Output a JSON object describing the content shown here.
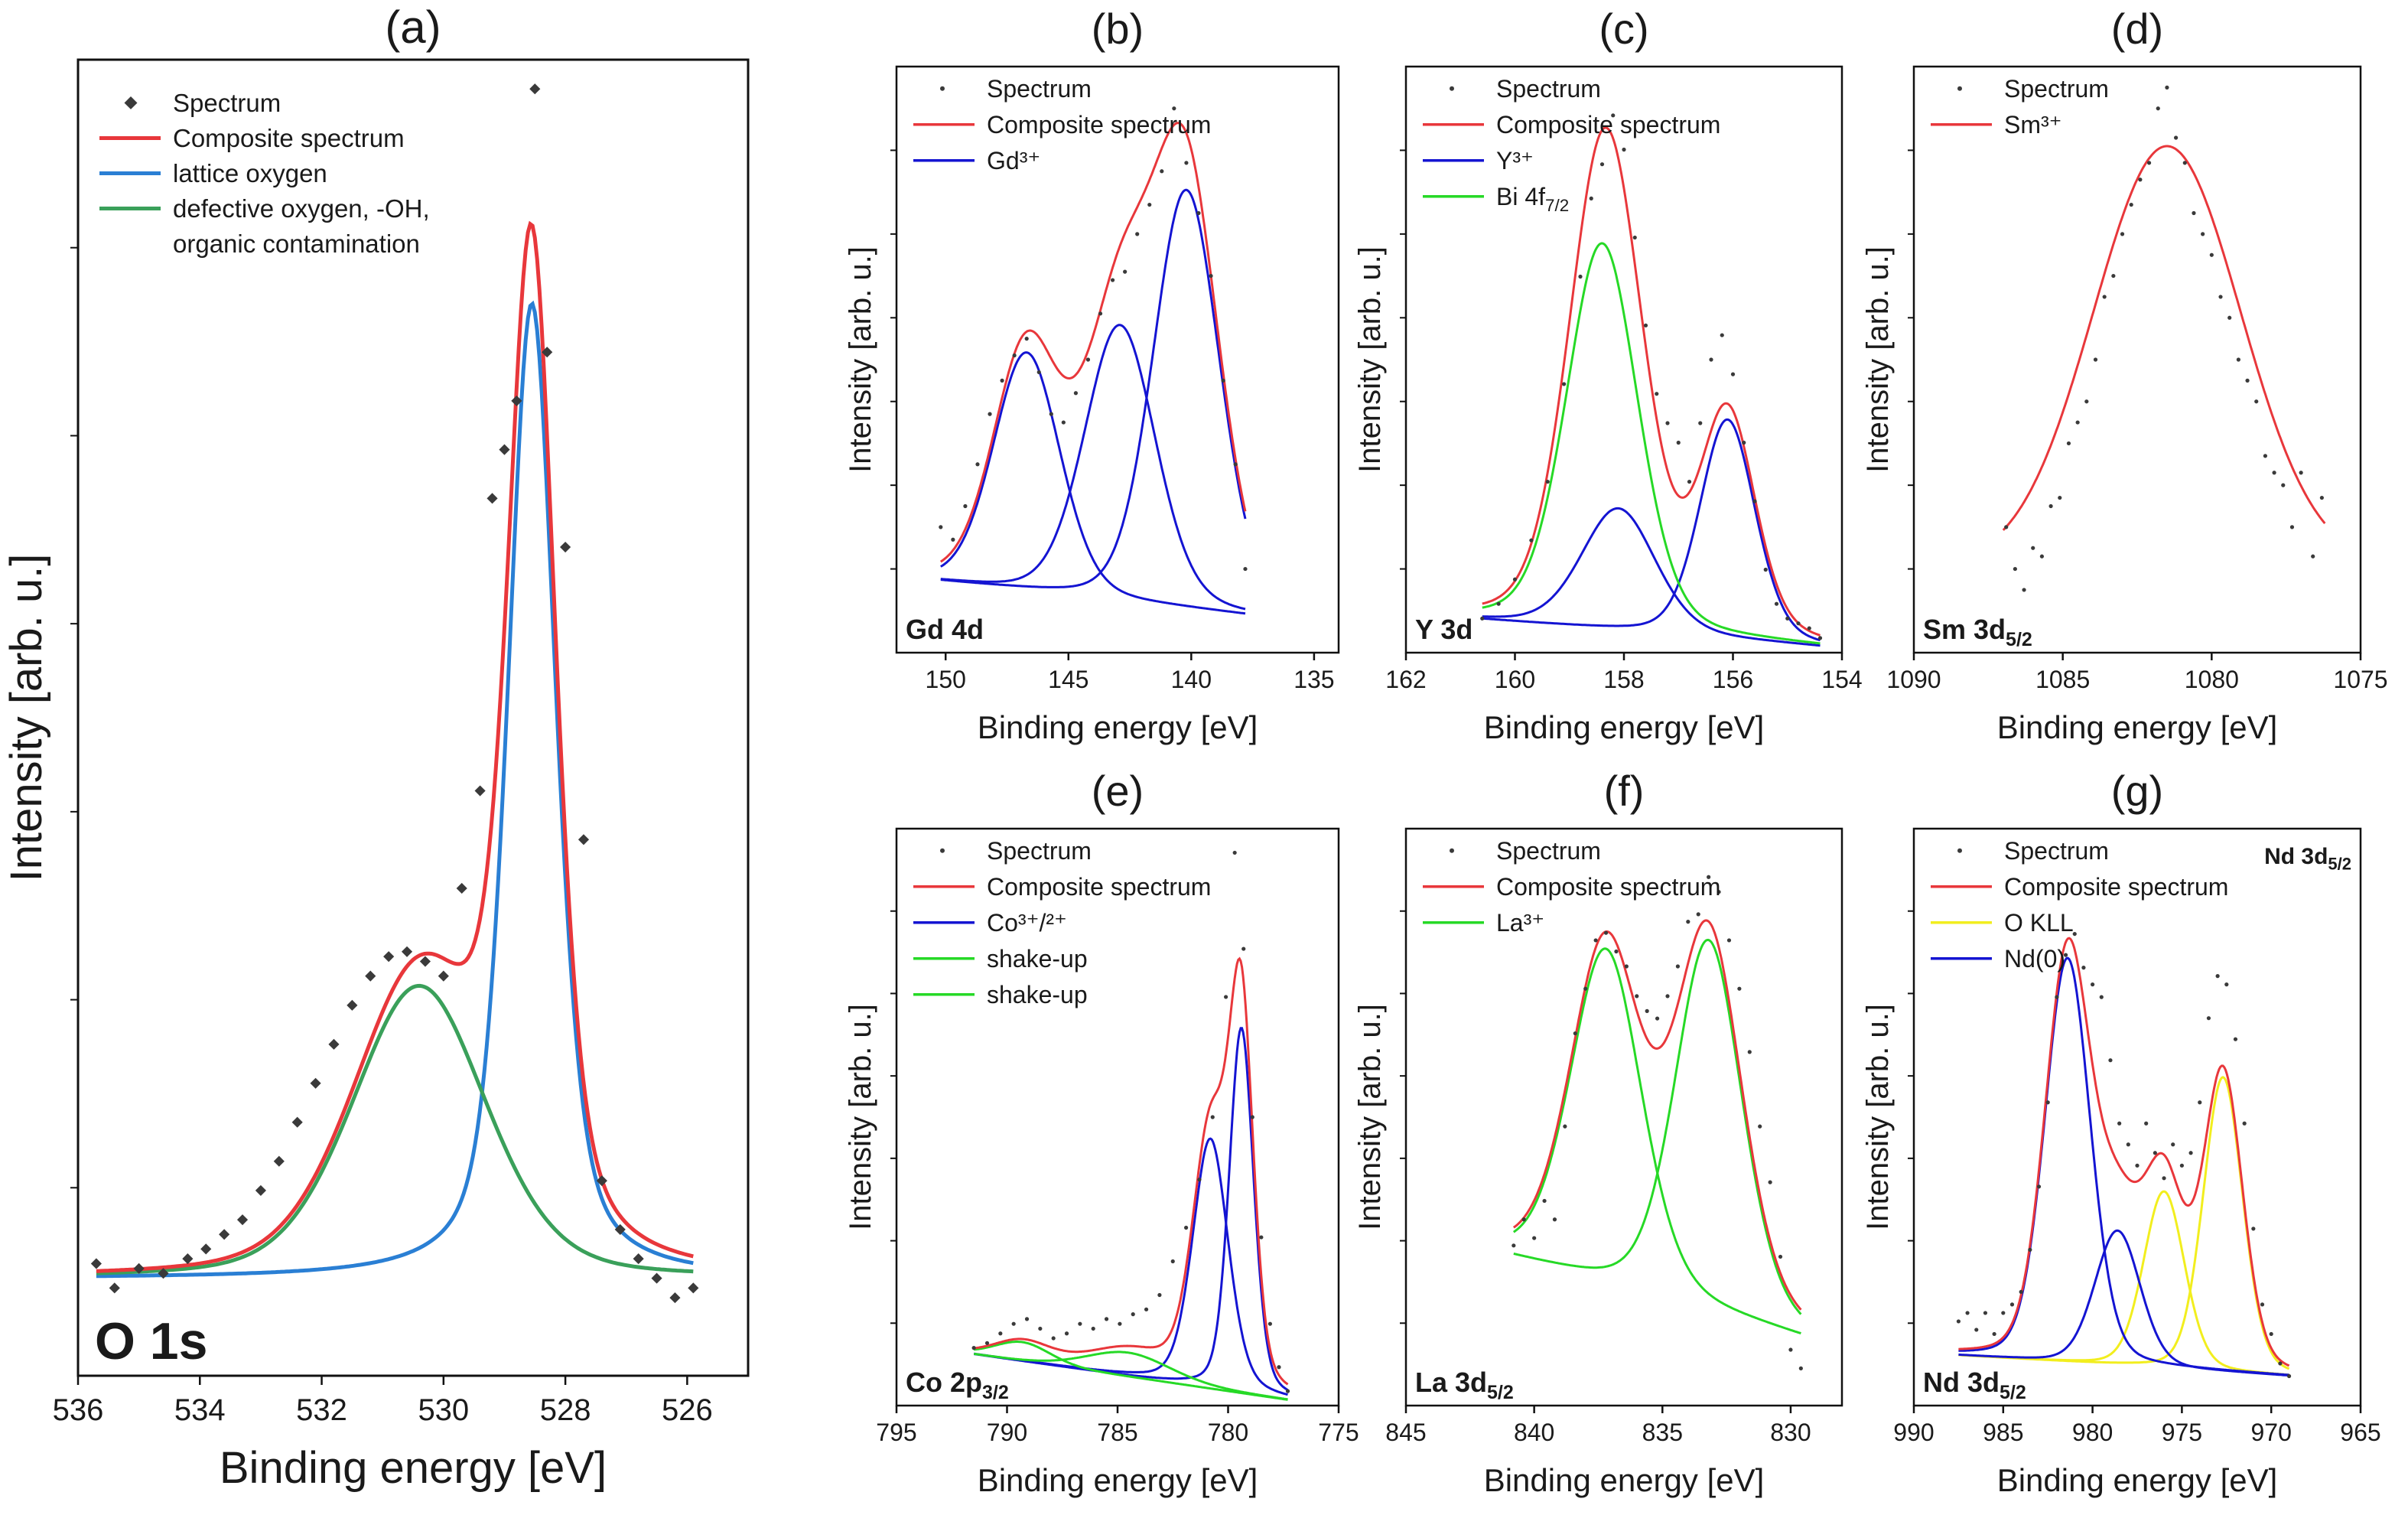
{
  "figure": {
    "ylabel": "Intensity [arb. u.]",
    "xlabel": "Binding energy [eV]"
  },
  "colors": {
    "spectrum": "#3a3a3a",
    "composite": "#e8373b",
    "blue_a": "#2a7fd4",
    "green_a": "#3aa05a",
    "blue": "#1414d2",
    "green": "#26d926",
    "yellow": "#f2ee1e"
  },
  "chart_data": [
    {
      "id": "a",
      "panel_label": "(a)",
      "core_level": "O 1s",
      "type": "line",
      "xlabel": "Binding energy [eV]",
      "ylabel": "Intensity [arb. u.]",
      "xlim": [
        536,
        525
      ],
      "ylim": [
        -0.1,
        1.25
      ],
      "xticks": [
        536,
        534,
        532,
        530,
        528,
        526
      ],
      "legend_position": "top-left",
      "baseline": 0.0,
      "series": [
        {
          "name": "Spectrum",
          "kind": "points",
          "color_key": "spectrum",
          "x": [
            535.7,
            535.4,
            535.0,
            534.6,
            534.2,
            533.9,
            533.6,
            533.3,
            533.0,
            532.7,
            532.4,
            532.1,
            531.8,
            531.5,
            531.2,
            530.9,
            530.6,
            530.3,
            530.0,
            529.7,
            529.4,
            529.2,
            529.0,
            528.8,
            528.5,
            528.3,
            528.0,
            527.7,
            527.4,
            527.1,
            526.8,
            526.5,
            526.2,
            525.9
          ],
          "y": [
            0.015,
            -0.01,
            0.01,
            0.005,
            0.02,
            0.03,
            0.045,
            0.06,
            0.09,
            0.12,
            0.16,
            0.2,
            0.24,
            0.28,
            0.31,
            0.33,
            0.335,
            0.325,
            0.31,
            0.4,
            0.5,
            0.8,
            0.85,
            0.9,
            1.22,
            0.95,
            0.75,
            0.45,
            0.1,
            0.05,
            0.02,
            0.0,
            -0.02,
            -0.01
          ]
        },
        {
          "name": "Composite spectrum",
          "kind": "line",
          "color_key": "composite",
          "components": [
            0,
            1
          ]
        },
        {
          "name": "lattice oxygen",
          "kind": "line",
          "color_key": "blue_a",
          "components": [
            1
          ]
        },
        {
          "name": "defective oxygen, -OH,\n organic contamination",
          "kind": "line",
          "color_key": "green_a",
          "components": [
            0
          ]
        }
      ],
      "components": [
        {
          "center": 530.4,
          "fwhm": 2.6,
          "amp": 0.3,
          "frac": 0.3
        },
        {
          "center": 528.55,
          "fwhm": 0.95,
          "amp": 1.0,
          "frac": 0.5
        }
      ]
    },
    {
      "id": "b",
      "panel_label": "(b)",
      "core_level": "Gd 4d",
      "type": "line",
      "xlabel": "Binding energy [eV]",
      "ylabel": "Intensity [arb. u.]",
      "xlim": [
        152,
        134
      ],
      "ylim": [
        -0.15,
        1.25
      ],
      "xticks": [
        150,
        145,
        140,
        135
      ],
      "baseline_line": [
        [
          150.3,
          0.02
        ],
        [
          137.8,
          -0.06
        ]
      ],
      "legend_position": "top-left",
      "series": [
        {
          "name": "Spectrum",
          "kind": "points",
          "color_key": "spectrum",
          "x": [
            150.2,
            149.7,
            149.2,
            148.7,
            148.2,
            147.7,
            147.2,
            146.7,
            146.2,
            145.7,
            145.2,
            144.7,
            144.2,
            143.7,
            143.2,
            142.7,
            142.2,
            141.7,
            141.2,
            140.7,
            140.2,
            139.7,
            139.2,
            138.7,
            138.2,
            137.8
          ],
          "y": [
            0.15,
            0.12,
            0.2,
            0.3,
            0.42,
            0.5,
            0.56,
            0.6,
            0.52,
            0.42,
            0.4,
            0.47,
            0.55,
            0.66,
            0.74,
            0.76,
            0.85,
            0.92,
            1.0,
            1.15,
            1.02,
            0.9,
            0.75,
            0.5,
            0.3,
            0.05
          ]
        },
        {
          "name": "Composite spectrum",
          "kind": "line",
          "color_key": "composite",
          "components": [
            0,
            1,
            2
          ]
        },
        {
          "name": "Gd³⁺",
          "kind": "line",
          "color_key": "blue",
          "components": [
            0,
            1,
            2
          ],
          "individual": true
        }
      ],
      "components": [
        {
          "center": 146.7,
          "fwhm": 3.2,
          "amp": 0.57,
          "frac": 0.2
        },
        {
          "center": 142.9,
          "fwhm": 3.4,
          "amp": 0.66,
          "frac": 0.2
        },
        {
          "center": 140.2,
          "fwhm": 3.2,
          "amp": 1.0,
          "frac": 0.2
        }
      ]
    },
    {
      "id": "c",
      "panel_label": "(c)",
      "core_level": "Y 3d",
      "type": "line",
      "xlabel": "Binding energy [eV]",
      "ylabel": "Intensity [arb. u.]",
      "xlim": [
        162,
        154
      ],
      "ylim": [
        -0.05,
        1.15
      ],
      "xticks": [
        162,
        160,
        158,
        156,
        154
      ],
      "baseline_line": [
        [
          160.8,
          0.02
        ],
        [
          154.2,
          -0.04
        ]
      ],
      "legend_position": "top-left",
      "series": [
        {
          "name": "Spectrum",
          "kind": "points",
          "color_key": "spectrum",
          "x": [
            160.6,
            160.3,
            160.0,
            159.7,
            159.4,
            159.1,
            158.8,
            158.6,
            158.4,
            158.2,
            158.0,
            157.8,
            157.6,
            157.4,
            157.2,
            157.0,
            156.8,
            156.6,
            156.4,
            156.2,
            156.0,
            155.8,
            155.6,
            155.4,
            155.2,
            155.0,
            154.8,
            154.6,
            154.4
          ],
          "y": [
            0.02,
            0.05,
            0.1,
            0.18,
            0.3,
            0.5,
            0.72,
            0.88,
            0.95,
            1.05,
            0.98,
            0.8,
            0.62,
            0.48,
            0.42,
            0.38,
            0.3,
            0.42,
            0.55,
            0.6,
            0.52,
            0.38,
            0.26,
            0.12,
            0.05,
            0.02,
            0.01,
            0.0,
            -0.02
          ]
        },
        {
          "name": "Composite spectrum",
          "kind": "line",
          "color_key": "composite",
          "components": [
            0,
            1,
            2
          ]
        },
        {
          "name": "Y³⁺",
          "kind": "line",
          "color_key": "blue",
          "components": [
            1,
            2
          ],
          "individual": true
        },
        {
          "name": "Bi 4f7/2",
          "kind": "line",
          "color_key": "green",
          "components": [
            0
          ],
          "individual": true
        }
      ],
      "components": [
        {
          "center": 158.4,
          "fwhm": 1.55,
          "amp": 0.79,
          "frac": 0.25
        },
        {
          "center": 158.1,
          "fwhm": 1.6,
          "amp": 0.25,
          "frac": 0.25
        },
        {
          "center": 156.1,
          "fwhm": 1.2,
          "amp": 0.45,
          "frac": 0.25
        }
      ]
    },
    {
      "id": "d",
      "panel_label": "(d)",
      "core_level": "Sm 3d5/2",
      "type": "line",
      "xlabel": "Binding energy [eV]",
      "ylabel": "Intensity [arb. u.]",
      "xlim": [
        1090,
        1075
      ],
      "ylim": [
        -0.25,
        1.15
      ],
      "xticks": [
        1090,
        1085,
        1080,
        1075
      ],
      "legend_position": "top-left",
      "series": [
        {
          "name": "Spectrum",
          "kind": "points",
          "color_key": "spectrum",
          "x": [
            1086.9,
            1086.6,
            1086.3,
            1086.0,
            1085.7,
            1085.4,
            1085.1,
            1084.8,
            1084.5,
            1084.2,
            1083.9,
            1083.6,
            1083.3,
            1083.0,
            1082.7,
            1082.4,
            1082.1,
            1081.8,
            1081.5,
            1081.2,
            1080.9,
            1080.6,
            1080.3,
            1080.0,
            1079.7,
            1079.4,
            1079.1,
            1078.8,
            1078.5,
            1078.2,
            1077.9,
            1077.6,
            1077.3,
            1077.0,
            1076.6,
            1076.3
          ],
          "y": [
            0.05,
            -0.05,
            -0.1,
            0.0,
            -0.02,
            0.1,
            0.12,
            0.25,
            0.3,
            0.35,
            0.45,
            0.6,
            0.65,
            0.75,
            0.82,
            0.88,
            0.92,
            1.05,
            1.1,
            0.98,
            0.92,
            0.8,
            0.75,
            0.7,
            0.6,
            0.55,
            0.45,
            0.4,
            0.35,
            0.22,
            0.18,
            0.15,
            0.05,
            0.18,
            -0.02,
            0.12
          ]
        },
        {
          "name": "Sm³⁺",
          "kind": "line",
          "color_key": "composite",
          "components": [
            0
          ]
        }
      ],
      "components": [
        {
          "center": 1081.5,
          "fwhm": 5.8,
          "amp": 1.0,
          "frac": 0.0,
          "offset": -0.04
        }
      ],
      "curve_range": [
        1087.0,
        1076.2
      ]
    },
    {
      "id": "e",
      "panel_label": "(e)",
      "core_level": "Co 2p3/2",
      "type": "line",
      "xlabel": "Binding energy [eV]",
      "ylabel": "Intensity [arb. u.]",
      "xlim": [
        795,
        775
      ],
      "ylim": [
        -0.05,
        1.15
      ],
      "xticks": [
        795,
        790,
        785,
        780,
        775
      ],
      "baseline_line": [
        [
          792,
          0.06
        ],
        [
          777,
          -0.04
        ]
      ],
      "legend_position": "top-left",
      "series": [
        {
          "name": "Spectrum",
          "kind": "points",
          "color_key": "spectrum",
          "x": [
            791.5,
            790.9,
            790.3,
            789.7,
            789.1,
            788.5,
            787.9,
            787.3,
            786.7,
            786.1,
            785.5,
            784.9,
            784.3,
            783.7,
            783.1,
            782.5,
            781.9,
            781.3,
            780.7,
            780.1,
            779.7,
            779.3,
            778.9,
            778.5,
            778.1,
            777.7,
            777.3
          ],
          "y": [
            0.07,
            0.08,
            0.1,
            0.12,
            0.13,
            0.11,
            0.09,
            0.1,
            0.12,
            0.11,
            0.13,
            0.12,
            0.14,
            0.15,
            0.18,
            0.25,
            0.32,
            0.42,
            0.55,
            0.8,
            1.1,
            0.9,
            0.55,
            0.3,
            0.12,
            0.03,
            -0.02
          ]
        },
        {
          "name": "Composite spectrum",
          "kind": "line",
          "color_key": "composite",
          "components": [
            0,
            1,
            2,
            3
          ]
        },
        {
          "name": "Co³⁺/²⁺",
          "kind": "line",
          "color_key": "blue",
          "components": [
            2,
            3
          ],
          "individual": true
        },
        {
          "name": "shake-up",
          "kind": "line",
          "color_key": "green",
          "components": [
            0
          ],
          "individual": true
        },
        {
          "name": "shake-up",
          "kind": "line",
          "color_key": "green",
          "components": [
            1
          ],
          "individual": true
        }
      ],
      "components": [
        {
          "center": 789.3,
          "fwhm": 3.0,
          "amp": 0.04,
          "frac": 0.2
        },
        {
          "center": 784.5,
          "fwhm": 4.5,
          "amp": 0.05,
          "frac": 0.2
        },
        {
          "center": 780.8,
          "fwhm": 1.9,
          "amp": 0.52,
          "frac": 0.3
        },
        {
          "center": 779.4,
          "fwhm": 1.3,
          "amp": 0.76,
          "frac": 0.3
        }
      ]
    },
    {
      "id": "f",
      "panel_label": "(f)",
      "core_level": "La 3d5/2",
      "type": "line",
      "xlabel": "Binding energy [eV]",
      "ylabel": "Intensity [arb. u.]",
      "xlim": [
        845,
        828
      ],
      "ylim": [
        -0.4,
        1.15
      ],
      "xticks": [
        845,
        840,
        835,
        830
      ],
      "baseline_line": [
        [
          841,
          0.0
        ],
        [
          829.5,
          -0.22
        ]
      ],
      "legend_position": "top-left",
      "series": [
        {
          "name": "Spectrum",
          "kind": "points",
          "color_key": "spectrum",
          "x": [
            840.8,
            840.4,
            840.0,
            839.6,
            839.2,
            838.8,
            838.4,
            838.0,
            837.6,
            837.2,
            836.8,
            836.4,
            836.0,
            835.6,
            835.2,
            834.8,
            834.4,
            834.0,
            833.6,
            833.2,
            832.8,
            832.4,
            832.0,
            831.6,
            831.2,
            830.8,
            830.4,
            830.0,
            829.6
          ],
          "y": [
            0.03,
            0.1,
            0.05,
            0.15,
            0.1,
            0.35,
            0.6,
            0.72,
            0.85,
            0.87,
            0.82,
            0.78,
            0.7,
            0.66,
            0.64,
            0.7,
            0.78,
            0.9,
            0.92,
            1.02,
            0.98,
            0.85,
            0.72,
            0.55,
            0.35,
            0.2,
            0.0,
            -0.25,
            -0.3
          ]
        },
        {
          "name": "Composite spectrum",
          "kind": "line",
          "color_key": "composite",
          "components": [
            0,
            1
          ]
        },
        {
          "name": "La³⁺",
          "kind": "line",
          "color_key": "green",
          "components": [
            0,
            1
          ],
          "individual": true
        }
      ],
      "components": [
        {
          "center": 837.2,
          "fwhm": 3.3,
          "amp": 0.9,
          "frac": 0.3
        },
        {
          "center": 833.2,
          "fwhm": 3.1,
          "amp": 1.0,
          "frac": 0.3
        }
      ]
    },
    {
      "id": "g",
      "panel_label": "(g)",
      "core_level": "Nd 3d5/2",
      "core_level_top": "Nd 3d5/2",
      "type": "line",
      "xlabel": "Binding energy [eV]",
      "ylabel": "Intensity [arb. u.]",
      "xlim": [
        990,
        965
      ],
      "ylim": [
        -0.12,
        1.25
      ],
      "xticks": [
        990,
        985,
        980,
        975,
        970,
        965
      ],
      "baseline_line": [
        [
          987.8,
          0.0
        ],
        [
          969,
          -0.05
        ]
      ],
      "legend_position": "top-left",
      "series": [
        {
          "name": "Spectrum",
          "kind": "points",
          "color_key": "spectrum",
          "x": [
            987.5,
            987.0,
            986.5,
            986.0,
            985.5,
            985.0,
            984.5,
            984.0,
            983.5,
            983.0,
            982.5,
            982.0,
            981.5,
            981.0,
            980.5,
            980.0,
            979.5,
            979.0,
            978.5,
            978.0,
            977.5,
            977.0,
            976.5,
            976.0,
            975.5,
            975.0,
            974.5,
            974.0,
            973.5,
            973.0,
            972.5,
            972.0,
            971.5,
            971.0,
            970.5,
            970.0,
            969.5,
            969.0
          ],
          "y": [
            0.08,
            0.1,
            0.06,
            0.1,
            0.05,
            0.1,
            0.12,
            0.15,
            0.25,
            0.4,
            0.6,
            0.85,
            0.95,
            1.0,
            0.92,
            0.88,
            0.85,
            0.7,
            0.55,
            0.5,
            0.45,
            0.55,
            0.48,
            0.42,
            0.5,
            0.45,
            0.48,
            0.6,
            0.8,
            0.9,
            0.88,
            0.75,
            0.55,
            0.3,
            0.12,
            0.05,
            -0.02,
            -0.05
          ]
        },
        {
          "name": "Composite spectrum",
          "kind": "line",
          "color_key": "composite",
          "components": [
            0,
            1,
            2,
            3
          ]
        },
        {
          "name": "O KLL",
          "kind": "line",
          "color_key": "yellow",
          "components": [
            2,
            3
          ],
          "individual": true
        },
        {
          "name": "Nd(0)",
          "kind": "line",
          "color_key": "blue",
          "components": [
            0,
            1
          ],
          "individual": true
        }
      ],
      "components": [
        {
          "center": 981.4,
          "fwhm": 3.0,
          "amp": 0.96,
          "frac": 0.2
        },
        {
          "center": 978.6,
          "fwhm": 3.0,
          "amp": 0.32,
          "frac": 0.2
        },
        {
          "center": 976.0,
          "fwhm": 2.7,
          "amp": 0.42,
          "frac": 0.2
        },
        {
          "center": 972.7,
          "fwhm": 2.6,
          "amp": 0.7,
          "frac": 0.2
        }
      ]
    }
  ]
}
